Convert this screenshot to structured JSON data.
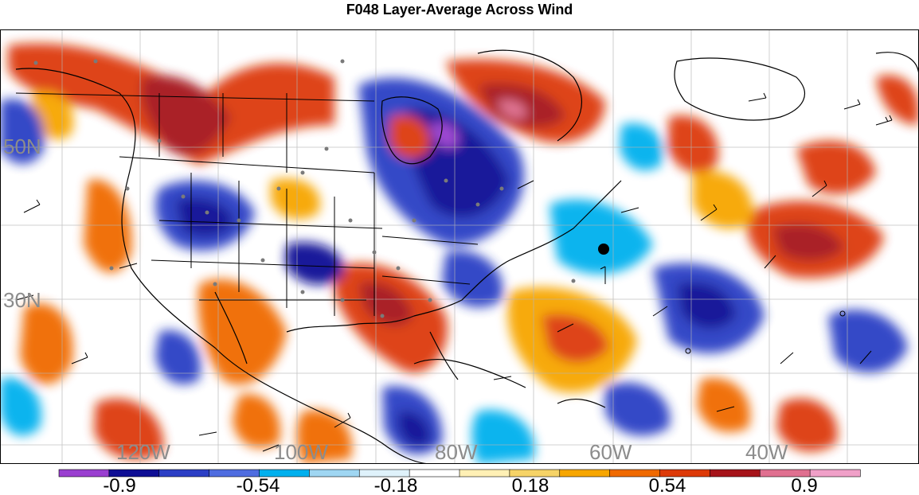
{
  "title": "F048 Layer-Average Across Wind",
  "map": {
    "lon_labels": [
      "120W",
      "100W",
      "80W",
      "60W",
      "40W"
    ],
    "lat_labels": [
      "50N",
      "30N"
    ]
  },
  "colorbar": {
    "colors": [
      "#9a3fd0",
      "#0f0f95",
      "#2c3fc5",
      "#4f6de0",
      "#00b0ee",
      "#9fd6f2",
      "#dff2fb",
      "#ffffff",
      "#fff0b5",
      "#f6d367",
      "#f7a600",
      "#f06a00",
      "#dd3a08",
      "#a6141a",
      "#e07090",
      "#f0a0c8"
    ],
    "tick_labels": [
      "-0.9",
      "-0.54",
      "-0.18",
      "0.18",
      "0.54",
      "0.9"
    ]
  }
}
